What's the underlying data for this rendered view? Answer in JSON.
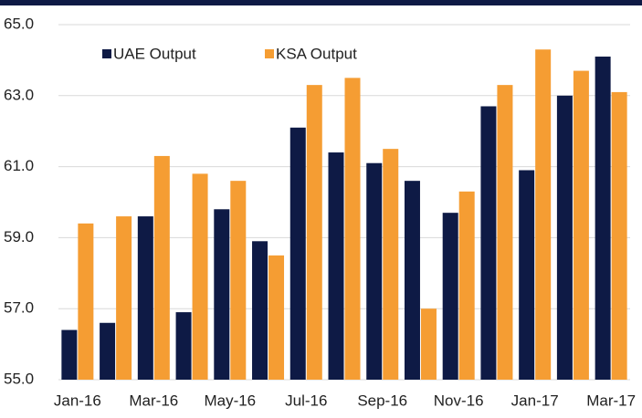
{
  "chart_data": {
    "type": "bar",
    "categories": [
      "Jan-16",
      null,
      "Mar-16",
      null,
      "May-16",
      null,
      "Jul-16",
      null,
      "Sep-16",
      null,
      "Nov-16",
      null,
      "Jan-17",
      null,
      "Mar-17"
    ],
    "series": [
      {
        "name": "UAE Output",
        "color": "#0e1a45",
        "values": [
          56.4,
          56.6,
          59.6,
          56.9,
          59.8,
          58.9,
          62.1,
          61.4,
          61.1,
          60.6,
          59.7,
          62.7,
          60.9,
          63.0,
          64.1
        ]
      },
      {
        "name": "KSA Output",
        "color": "#f59d33",
        "values": [
          59.4,
          59.6,
          61.3,
          60.8,
          60.6,
          58.5,
          63.3,
          63.5,
          61.5,
          57.0,
          60.3,
          63.3,
          64.3,
          63.7,
          63.1
        ]
      }
    ],
    "ylim": [
      55,
      65
    ],
    "yticks": [
      {
        "value": 55,
        "label": "55.0"
      },
      {
        "value": 57,
        "label": "57.0"
      },
      {
        "value": 59,
        "label": "59.0"
      },
      {
        "value": 61,
        "label": "61.0"
      },
      {
        "value": 63,
        "label": "63.0"
      },
      {
        "value": 65,
        "label": "65.0"
      }
    ],
    "grid": true,
    "legend": "top-left"
  }
}
